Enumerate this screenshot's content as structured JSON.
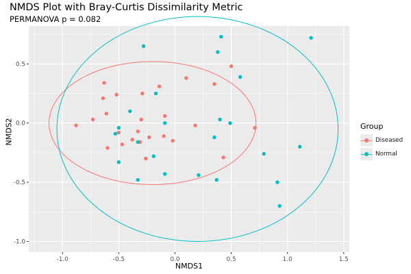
{
  "chart_data": {
    "type": "scatter",
    "title": "NMDS Plot with Bray-Curtis Dissimilarity Metric",
    "subtitle": "PERMANOVA p = 0.082",
    "xlabel": "NMDS1",
    "ylabel": "NMDS2",
    "xlim": [
      -1.3,
      1.55
    ],
    "ylim": [
      -1.09,
      0.82
    ],
    "xticks": [
      -1.0,
      -0.5,
      0.0,
      0.5,
      1.0,
      1.5
    ],
    "xtick_labels": [
      "-1.0",
      "-0.5",
      "0.0",
      "0.5",
      "1.0",
      "1.5"
    ],
    "yticks": [
      -1.0,
      -0.5,
      0.0,
      0.5
    ],
    "ytick_labels": [
      "-1.0",
      "-0.5",
      "0.0",
      "0.5"
    ],
    "grid": true,
    "legend": {
      "title": "Group",
      "position": "right"
    },
    "series": [
      {
        "name": "Diseased",
        "color": "#f8766d",
        "ellipse": {
          "cx": -0.2,
          "cy": 0.0,
          "rx": 0.92,
          "ry": 0.52
        },
        "points": [
          [
            -0.88,
            -0.02
          ],
          [
            -0.73,
            0.03
          ],
          [
            -0.63,
            0.34
          ],
          [
            -0.64,
            0.21
          ],
          [
            -0.61,
            0.08
          ],
          [
            -0.6,
            -0.21
          ],
          [
            -0.52,
            0.24
          ],
          [
            -0.5,
            -0.08
          ],
          [
            -0.47,
            -0.18
          ],
          [
            -0.38,
            -0.14
          ],
          [
            -0.33,
            -0.07
          ],
          [
            -0.31,
            -0.16
          ],
          [
            -0.3,
            0.03
          ],
          [
            -0.29,
            0.25
          ],
          [
            -0.26,
            -0.3
          ],
          [
            -0.23,
            -0.12
          ],
          [
            -0.14,
            0.31
          ],
          [
            -0.1,
            -0.11
          ],
          [
            -0.09,
            0.06
          ],
          [
            -0.02,
            -0.15
          ],
          [
            0.1,
            0.38
          ],
          [
            0.18,
            -0.02
          ],
          [
            0.35,
            0.33
          ],
          [
            0.43,
            -0.29
          ],
          [
            0.5,
            0.48
          ],
          [
            0.71,
            -0.04
          ]
        ]
      },
      {
        "name": "Normal",
        "color": "#00bfc4",
        "ellipse": {
          "cx": 0.2,
          "cy": -0.05,
          "rx": 1.25,
          "ry": 0.95
        },
        "points": [
          [
            -0.28,
            0.65
          ],
          [
            -0.53,
            -0.09
          ],
          [
            -0.5,
            -0.04
          ],
          [
            -0.5,
            -0.33
          ],
          [
            -0.4,
            0.1
          ],
          [
            -0.33,
            -0.16
          ],
          [
            -0.33,
            -0.48
          ],
          [
            -0.19,
            -0.28
          ],
          [
            -0.17,
            0.25
          ],
          [
            -0.09,
            0.0
          ],
          [
            -0.09,
            -0.43
          ],
          [
            0.21,
            -0.44
          ],
          [
            0.35,
            -0.12
          ],
          [
            0.37,
            -0.48
          ],
          [
            0.38,
            0.6
          ],
          [
            0.4,
            0.03
          ],
          [
            0.41,
            0.73
          ],
          [
            0.49,
            0.0
          ],
          [
            0.58,
            0.39
          ],
          [
            0.79,
            -0.26
          ],
          [
            0.91,
            -0.5
          ],
          [
            0.93,
            -0.7
          ],
          [
            1.11,
            -0.2
          ],
          [
            1.21,
            0.72
          ]
        ]
      }
    ]
  }
}
